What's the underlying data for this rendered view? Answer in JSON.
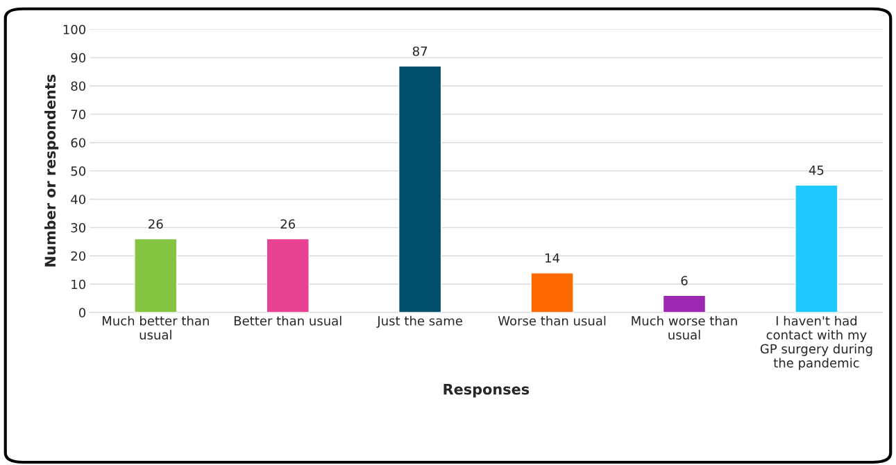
{
  "chart_data": {
    "type": "bar",
    "xlabel": "Responses",
    "ylabel": "Number or respondents",
    "categories": [
      "Much better than usual",
      "Better than usual",
      "Just the same",
      "Worse than usual",
      "Much worse than usual",
      "I haven't had contact with my GP surgery during the pandemic"
    ],
    "values": [
      26,
      26,
      87,
      14,
      6,
      45
    ],
    "colors": [
      "#84c441",
      "#e84393",
      "#00506b",
      "#ff6a00",
      "#9c27b0",
      "#1fc8ff"
    ],
    "ylim": [
      0,
      100
    ],
    "yticks": [
      0,
      10,
      20,
      30,
      40,
      50,
      60,
      70,
      80,
      90,
      100
    ],
    "grid": "y",
    "data_labels": true
  }
}
